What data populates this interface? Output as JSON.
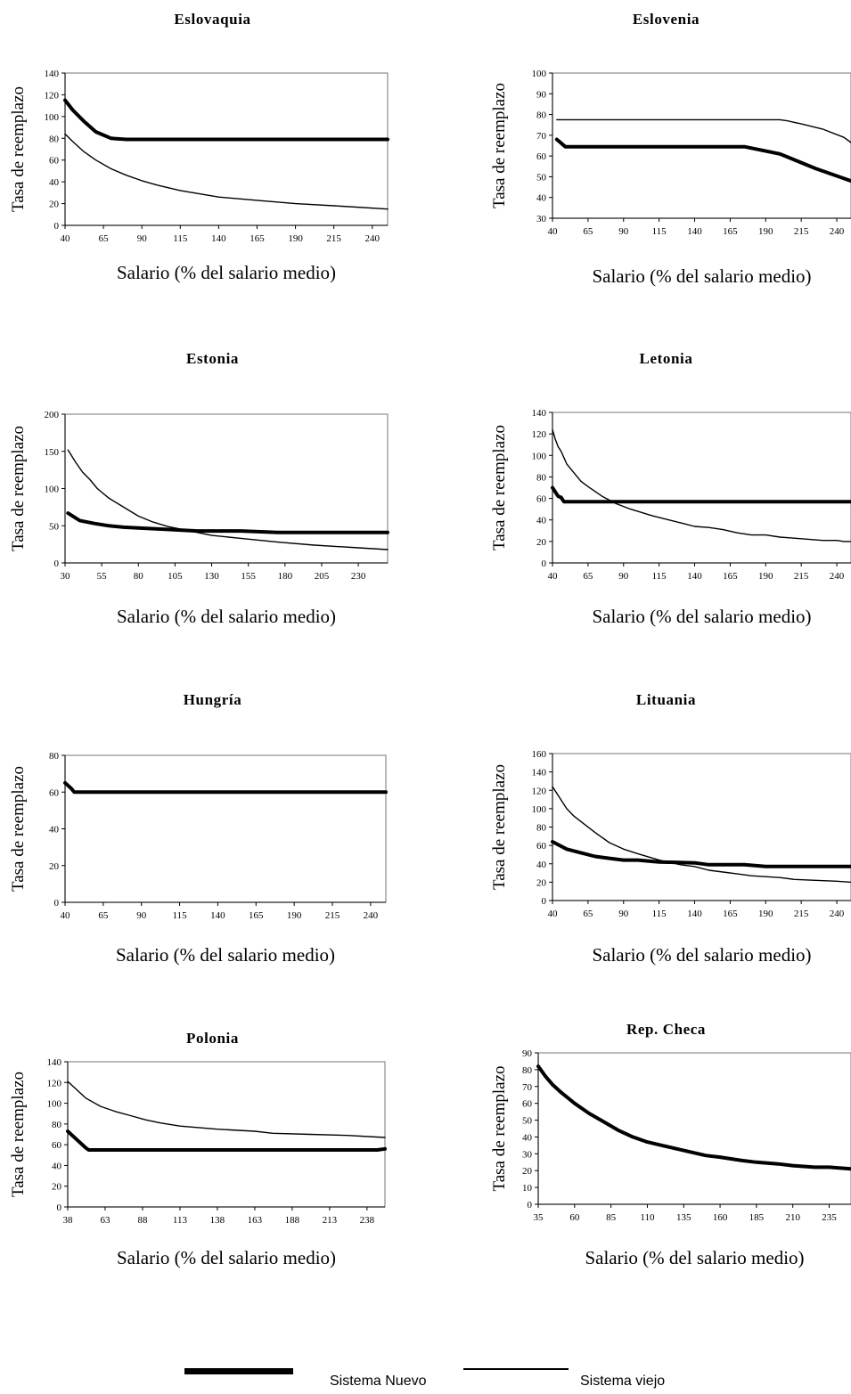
{
  "legend": {
    "new_label": "Sistema Nuevo",
    "old_label": "Sistema viejo"
  },
  "chart_data": [
    {
      "type": "line",
      "title": "Eslovaquia",
      "xlabel": "Salario (% del salario medio)",
      "ylabel": "Tasa de reemplazo",
      "xlim": [
        40,
        250
      ],
      "ylim": [
        0,
        140
      ],
      "xticks": [
        40,
        65,
        90,
        115,
        140,
        165,
        190,
        215,
        240
      ],
      "yticks": [
        0,
        20,
        40,
        60,
        80,
        100,
        120,
        140
      ],
      "series": [
        {
          "name": "Sistema Nuevo",
          "x": [
            40,
            45,
            52,
            60,
            70,
            80,
            100,
            150,
            200,
            250
          ],
          "y": [
            115,
            106,
            96,
            86,
            80,
            79,
            79,
            79,
            79,
            79
          ]
        },
        {
          "name": "Sistema viejo",
          "x": [
            40,
            45,
            52,
            60,
            70,
            80,
            90,
            100,
            115,
            140,
            165,
            190,
            215,
            250
          ],
          "y": [
            84,
            77,
            68,
            60,
            52,
            46,
            41,
            37,
            32,
            26,
            23,
            20,
            18,
            15
          ]
        }
      ]
    },
    {
      "type": "line",
      "title": "Eslovenia",
      "xlabel": "Salario (% del salario medio)",
      "ylabel": "Tasa de reemplazo",
      "xlim": [
        40,
        250
      ],
      "ylim": [
        30,
        100
      ],
      "xticks": [
        40,
        65,
        90,
        115,
        140,
        165,
        190,
        215,
        240
      ],
      "yticks": [
        30,
        40,
        50,
        60,
        70,
        80,
        90,
        100
      ],
      "series": [
        {
          "name": "Sistema Nuevo",
          "x": [
            43,
            49,
            60,
            100,
            150,
            175,
            200,
            225,
            250
          ],
          "y": [
            68,
            64.5,
            64.5,
            64.5,
            64.5,
            64.5,
            61,
            54,
            48
          ]
        },
        {
          "name": "Sistema viejo",
          "x": [
            43,
            100,
            150,
            200,
            205,
            215,
            230,
            245,
            250
          ],
          "y": [
            77.5,
            77.5,
            77.5,
            77.5,
            77,
            75.5,
            73,
            69,
            66.5
          ]
        }
      ]
    },
    {
      "type": "line",
      "title": "Estonia",
      "xlabel": "Salario (% del salario medio)",
      "ylabel": "Tasa de reemplazo",
      "xlim": [
        30,
        250
      ],
      "ylim": [
        0,
        200
      ],
      "xticks": [
        30,
        55,
        80,
        105,
        130,
        155,
        180,
        205,
        230
      ],
      "yticks": [
        0,
        50,
        100,
        150,
        200
      ],
      "series": [
        {
          "name": "Sistema Nuevo",
          "x": [
            32,
            40,
            50,
            60,
            70,
            80,
            100,
            120,
            150,
            175,
            200,
            250
          ],
          "y": [
            67,
            57,
            53,
            50,
            48,
            47,
            45,
            43,
            43,
            41,
            41,
            41
          ]
        },
        {
          "name": "Sistema viejo",
          "x": [
            32,
            37,
            42,
            47,
            52,
            60,
            70,
            80,
            90,
            100,
            115,
            130,
            150,
            175,
            200,
            225,
            250
          ],
          "y": [
            152,
            136,
            122,
            112,
            100,
            87,
            75,
            63,
            55,
            49,
            43,
            37,
            33,
            28,
            24,
            21,
            18
          ]
        }
      ]
    },
    {
      "type": "line",
      "title": "Letonia",
      "xlabel": "Salario (% del salario medio)",
      "ylabel": "Tasa de reemplazo",
      "xlim": [
        40,
        250
      ],
      "ylim": [
        0,
        140
      ],
      "xticks": [
        40,
        65,
        90,
        115,
        140,
        165,
        190,
        215,
        240
      ],
      "yticks": [
        0,
        20,
        40,
        60,
        80,
        100,
        120,
        140
      ],
      "series": [
        {
          "name": "Sistema Nuevo",
          "x": [
            40,
            42,
            44,
            46,
            48,
            50,
            60,
            100,
            150,
            200,
            250
          ],
          "y": [
            70,
            66,
            62,
            61,
            57,
            57,
            57,
            57,
            57,
            57,
            57
          ]
        },
        {
          "name": "Sistema viejo",
          "x": [
            40,
            42,
            44,
            46,
            48,
            50,
            55,
            60,
            65,
            75,
            85,
            95,
            110,
            125,
            140,
            150,
            160,
            170,
            180,
            190,
            200,
            210,
            220,
            230,
            240,
            245,
            250
          ],
          "y": [
            124,
            115,
            108,
            104,
            98,
            92,
            84,
            76,
            71,
            62,
            55,
            50,
            44,
            39,
            34,
            33,
            31,
            28,
            26,
            26,
            24,
            23,
            22,
            21,
            21,
            20,
            20
          ]
        }
      ]
    },
    {
      "type": "line",
      "title": "Hungría",
      "xlabel": "Salario (% del salario medio)",
      "ylabel": "Tasa de reemplazo",
      "xlim": [
        40,
        250
      ],
      "ylim": [
        0,
        80
      ],
      "xticks": [
        40,
        65,
        90,
        115,
        140,
        165,
        190,
        215,
        240
      ],
      "yticks": [
        0,
        20,
        40,
        60,
        80
      ],
      "series": [
        {
          "name": "Sistema Nuevo",
          "x": [
            40,
            44,
            46,
            100,
            150,
            200,
            250
          ],
          "y": [
            65,
            62,
            60,
            60,
            60,
            60,
            60
          ]
        },
        {
          "name": "Sistema viejo",
          "x": [
            40,
            44,
            46,
            100,
            150,
            200,
            250
          ],
          "y": [
            65,
            62,
            60,
            60,
            60,
            60,
            60
          ]
        }
      ]
    },
    {
      "type": "line",
      "title": "Lituania",
      "xlabel": "Salario (% del salario medio)",
      "ylabel": "Tasa de reemplazo",
      "xlim": [
        40,
        250
      ],
      "ylim": [
        0,
        160
      ],
      "xticks": [
        40,
        65,
        90,
        115,
        140,
        165,
        190,
        215,
        240
      ],
      "yticks": [
        0,
        20,
        40,
        60,
        80,
        100,
        120,
        140,
        160
      ],
      "series": [
        {
          "name": "Sistema Nuevo",
          "x": [
            40,
            50,
            60,
            70,
            80,
            90,
            100,
            115,
            140,
            150,
            175,
            190,
            200,
            250
          ],
          "y": [
            64,
            56,
            52,
            48,
            46,
            44,
            44,
            42,
            41,
            39,
            39,
            37,
            37,
            37
          ]
        },
        {
          "name": "Sistema viejo",
          "x": [
            40,
            45,
            50,
            55,
            60,
            70,
            80,
            90,
            100,
            115,
            130,
            140,
            150,
            160,
            170,
            180,
            190,
            200,
            210,
            225,
            240,
            250
          ],
          "y": [
            124,
            112,
            100,
            92,
            86,
            74,
            63,
            56,
            51,
            44,
            39,
            37,
            33,
            31,
            29,
            27,
            26,
            25,
            23,
            22,
            21,
            20
          ]
        }
      ]
    },
    {
      "type": "line",
      "title": "Polonia",
      "xlabel": "Salario (% del salario medio)",
      "ylabel": "Tasa de reemplazo",
      "xlim": [
        38,
        250
      ],
      "ylim": [
        0,
        140
      ],
      "xticks": [
        38,
        63,
        88,
        113,
        138,
        163,
        188,
        213,
        238
      ],
      "yticks": [
        0,
        20,
        40,
        60,
        80,
        100,
        120,
        140
      ],
      "series": [
        {
          "name": "Sistema Nuevo",
          "x": [
            38,
            44,
            50,
            52,
            100,
            150,
            200,
            245,
            250
          ],
          "y": [
            73,
            65,
            57,
            55,
            55,
            55,
            55,
            55,
            56
          ]
        },
        {
          "name": "Sistema viejo",
          "x": [
            38,
            44,
            50,
            60,
            70,
            80,
            90,
            100,
            113,
            138,
            163,
            175,
            200,
            225,
            250
          ],
          "y": [
            121,
            113,
            105,
            97,
            92,
            88,
            84,
            81,
            78,
            75,
            73,
            71,
            70,
            69,
            67
          ]
        }
      ]
    },
    {
      "type": "line",
      "title": "Rep. Checa",
      "xlabel": "Salario (% del salario medio)",
      "ylabel": "Tasa de reemplazo",
      "xlim": [
        35,
        250
      ],
      "ylim": [
        0,
        90
      ],
      "xticks": [
        35,
        60,
        85,
        110,
        135,
        160,
        185,
        210,
        235
      ],
      "yticks": [
        0,
        10,
        20,
        30,
        40,
        50,
        60,
        70,
        80,
        90
      ],
      "series": [
        {
          "name": "Sistema Nuevo",
          "x": [
            35,
            40,
            45,
            50,
            60,
            70,
            80,
            90,
            100,
            110,
            120,
            135,
            150,
            160,
            175,
            185,
            200,
            210,
            225,
            235,
            250
          ],
          "y": [
            82,
            76,
            71,
            67,
            60,
            54,
            49,
            44,
            40,
            37,
            35,
            32,
            29,
            28,
            26,
            25,
            24,
            23,
            22,
            22,
            21
          ]
        },
        {
          "name": "Sistema viejo",
          "x": [
            35,
            40,
            45,
            50,
            60,
            70,
            80,
            90,
            100,
            110,
            120,
            135,
            150,
            160,
            175,
            185,
            200,
            210,
            225,
            235,
            250
          ],
          "y": [
            82,
            76,
            71,
            67,
            60,
            54,
            49,
            44,
            40,
            37,
            35,
            32,
            29,
            28,
            26,
            25,
            24,
            23,
            22,
            22,
            21
          ]
        }
      ]
    }
  ]
}
